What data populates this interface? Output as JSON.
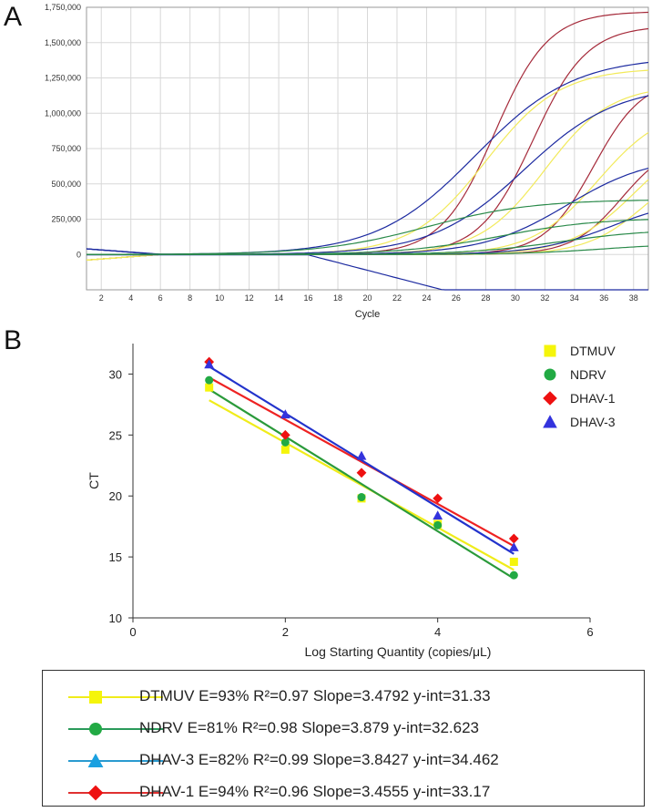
{
  "panels": {
    "a_label": "A",
    "b_label": "B"
  },
  "chart_data": [
    {
      "type": "line",
      "title": "",
      "xlabel": "Cycle",
      "ylabel": "",
      "xlim": [
        1,
        39
      ],
      "ylim": [
        -250000,
        1750000
      ],
      "x_ticks": [
        "2",
        "4",
        "6",
        "8",
        "10",
        "12",
        "14",
        "16",
        "18",
        "20",
        "22",
        "24",
        "26",
        "28",
        "30",
        "32",
        "34",
        "36",
        "38"
      ],
      "y_ticks": [
        "1,750,000",
        "1,500,000",
        "1,250,000",
        "1,000,000",
        "750,000",
        "500,000",
        "250,000",
        "0"
      ],
      "series": [
        {
          "name": "red-1",
          "color": "#a52a3a",
          "plateau": 1720000,
          "midpoint": 28.6,
          "steep": 0.55,
          "base": 0
        },
        {
          "name": "red-2",
          "color": "#a52a3a",
          "plateau": 1620000,
          "midpoint": 31.2,
          "steep": 0.55,
          "base": 0
        },
        {
          "name": "red-3",
          "color": "#a52a3a",
          "plateau": 1250000,
          "midpoint": 35.3,
          "steep": 0.6,
          "base": 0
        },
        {
          "name": "red-4",
          "color": "#a52a3a",
          "plateau": 800000,
          "midpoint": 37.2,
          "steep": 0.6,
          "base": 0
        },
        {
          "name": "yellow-1",
          "color": "#f2ea5a",
          "plateau": 1320000,
          "midpoint": 28.0,
          "steep": 0.4,
          "base": 0
        },
        {
          "name": "yellow-2",
          "color": "#f2ea5a",
          "plateau": 1200000,
          "midpoint": 32.0,
          "steep": 0.45,
          "base": 0
        },
        {
          "name": "yellow-3",
          "color": "#f2ea5a",
          "plateau": 1050000,
          "midpoint": 35.6,
          "steep": 0.45,
          "base": 0
        },
        {
          "name": "yellow-4",
          "color": "#f2ea5a",
          "plateau": 900000,
          "midpoint": 38.2,
          "steep": 0.45,
          "base": 0
        },
        {
          "name": "yellow-5",
          "color": "#f2ea5a",
          "plateau": 700000,
          "midpoint": 38.8,
          "steep": 0.5,
          "base": 0
        },
        {
          "name": "blue-1",
          "color": "#1c2aa0",
          "plateau": 1400000,
          "midpoint": 27.3,
          "steep": 0.3,
          "base": 0
        },
        {
          "name": "blue-2",
          "color": "#1c2aa0",
          "plateau": 1200000,
          "midpoint": 30.6,
          "steep": 0.32,
          "base": 0
        },
        {
          "name": "blue-3",
          "color": "#1c2aa0",
          "plateau": 700000,
          "midpoint": 33.5,
          "steep": 0.35,
          "base": 0
        },
        {
          "name": "blue-4",
          "color": "#1c2aa0",
          "plateau": 400000,
          "midpoint": 36.5,
          "steep": 0.4,
          "base": 0
        },
        {
          "name": "blue-drift",
          "color": "#1c2aa0",
          "plateau": 0,
          "midpoint": 30,
          "steep": 0.3,
          "base": -3000,
          "slope": -3400
        },
        {
          "name": "green-1",
          "color": "#2a8a4a",
          "plateau": 390000,
          "midpoint": 24.0,
          "steep": 0.28,
          "base": 0
        },
        {
          "name": "green-2",
          "color": "#2a8a4a",
          "plateau": 260000,
          "midpoint": 29.0,
          "steep": 0.3,
          "base": 0
        },
        {
          "name": "green-3",
          "color": "#2a8a4a",
          "plateau": 180000,
          "midpoint": 33.0,
          "steep": 0.32,
          "base": 0
        },
        {
          "name": "green-4",
          "color": "#2a8a4a",
          "plateau": 80000,
          "midpoint": 36.0,
          "steep": 0.35,
          "base": 0
        }
      ]
    },
    {
      "type": "scatter",
      "title": "",
      "xlabel": "Log Starting Quantity (copies/μL)",
      "ylabel": "CT",
      "xlim": [
        0,
        6
      ],
      "ylim": [
        10,
        32.5
      ],
      "x_ticks": [
        "0",
        "2",
        "4",
        "6"
      ],
      "y_ticks": [
        "30",
        "25",
        "20",
        "15",
        "10"
      ],
      "legend": [
        "DTMUV",
        "NDRV",
        "DHAV-1",
        "DHAV-3"
      ],
      "series": [
        {
          "name": "DTMUV",
          "color": "#f5f50a",
          "marker": "square",
          "x": [
            1,
            2,
            3,
            4,
            5
          ],
          "y": [
            28.9,
            23.8,
            19.8,
            17.7,
            14.6
          ],
          "fit_slope": -3.4792,
          "fit_intercept": 31.33,
          "line_color": "#f0ec1a"
        },
        {
          "name": "NDRV",
          "color": "#22aa44",
          "marker": "circle",
          "x": [
            1,
            2,
            3,
            4,
            5
          ],
          "y": [
            29.5,
            24.4,
            19.9,
            17.6,
            13.5
          ],
          "fit_slope": -3.879,
          "fit_intercept": 32.623,
          "line_color": "#2a9a3a"
        },
        {
          "name": "DHAV-1",
          "color": "#ee1111",
          "marker": "diamond",
          "x": [
            1,
            2,
            3,
            4,
            5
          ],
          "y": [
            31.0,
            25.0,
            21.9,
            19.8,
            16.5
          ],
          "fit_slope": -3.4555,
          "fit_intercept": 33.17,
          "line_color": "#ee2222"
        },
        {
          "name": "DHAV-3",
          "color": "#3333dd",
          "marker": "triangle",
          "x": [
            1,
            2,
            3,
            4,
            5
          ],
          "y": [
            30.8,
            26.7,
            23.3,
            18.4,
            15.8
          ],
          "fit_slope": -3.8427,
          "fit_intercept": 34.462,
          "line_color": "#2233cc"
        }
      ]
    }
  ],
  "legend_box": [
    {
      "text": "DTMUV E=93% R²=0.97 Slope=3.4792 y-int=31.33",
      "line_color": "#f0ec1a",
      "marker_color": "#f5f50a",
      "marker": "square"
    },
    {
      "text": "NDRV E=81% R²=0.98 Slope=3.879 y-int=32.623",
      "line_color": "#2a9a5a",
      "marker_color": "#22aa44",
      "marker": "circle"
    },
    {
      "text": "DHAV-3 E=82% R²=0.99 Slope=3.8427 y-int=34.462",
      "line_color": "#2a9ad0",
      "marker_color": "#1aa0e0",
      "marker": "triangle"
    },
    {
      "text": "DHAV-1 E=94% R²=0.96 Slope=3.4555 y-int=33.17",
      "line_color": "#e03030",
      "marker_color": "#ee1111",
      "marker": "diamond"
    }
  ]
}
